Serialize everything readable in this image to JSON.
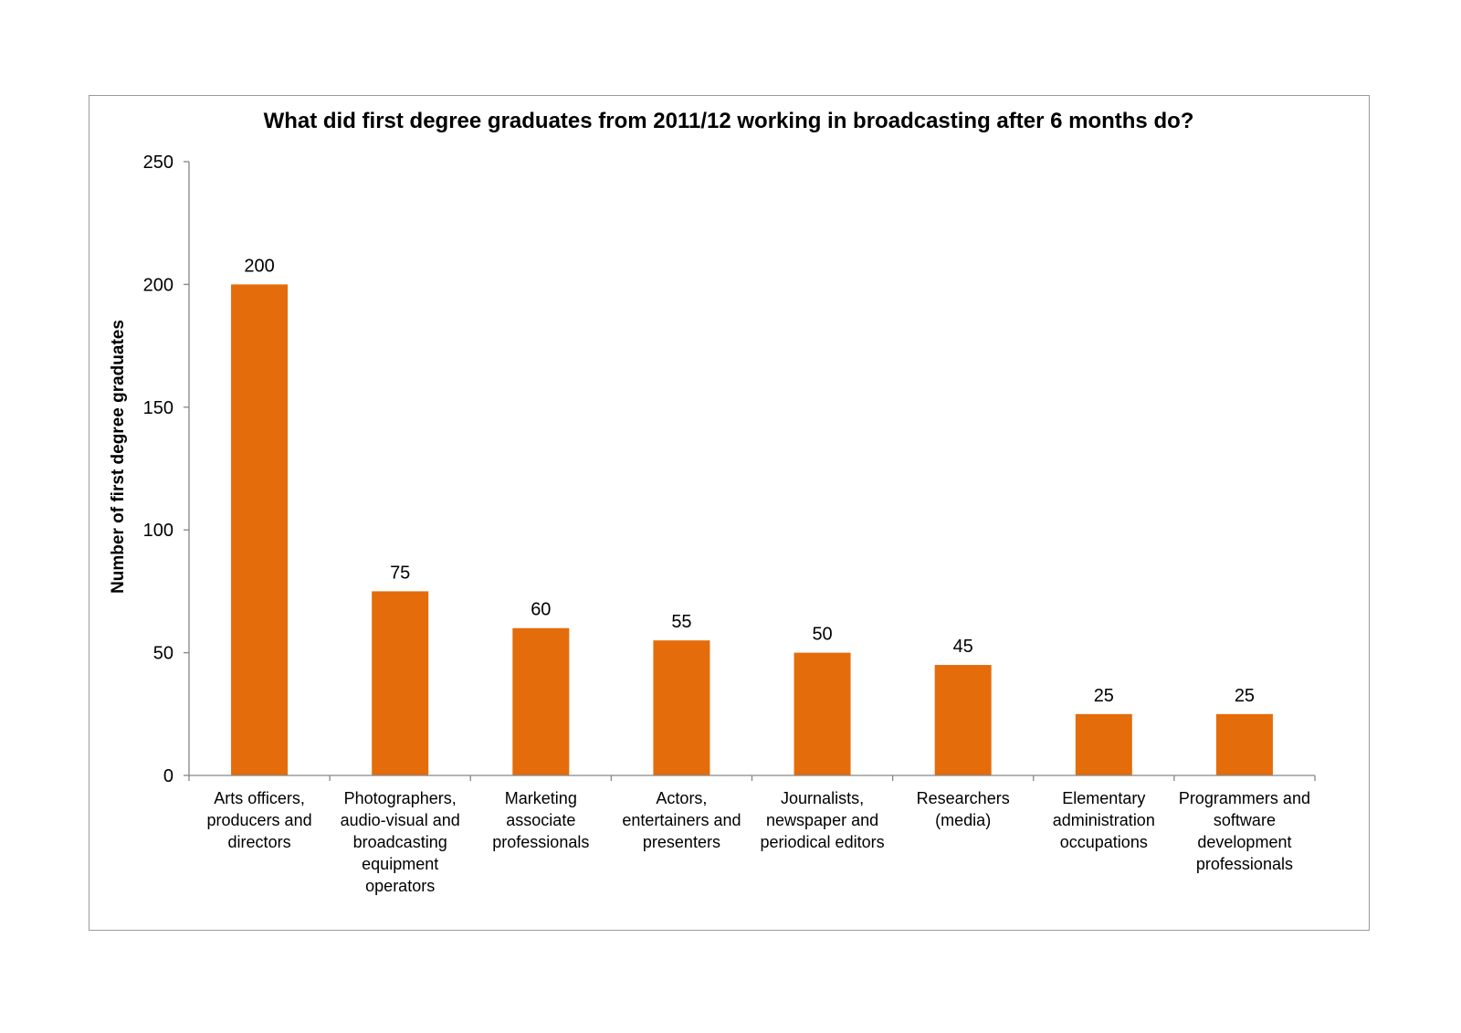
{
  "chart_data": {
    "type": "bar",
    "title": "What did first degree graduates from 2011/12 working in broadcasting after 6 months do?",
    "xlabel": "",
    "ylabel": "Number of first degree graduates",
    "ylim": [
      0,
      250
    ],
    "yticks": [
      0,
      50,
      100,
      150,
      200,
      250
    ],
    "grid": false,
    "legend": "none",
    "bar_color": "#E46C0A",
    "categories": [
      "Arts officers, producers and directors",
      "Photographers, audio-visual and broadcasting equipment operators",
      "Marketing associate professionals",
      "Actors, entertainers and presenters",
      "Journalists, newspaper and periodical editors",
      "Researchers (media)",
      "Elementary administration occupations",
      "Programmers and software development professionals"
    ],
    "category_label_lines": [
      [
        "Arts officers,",
        "producers and",
        "directors"
      ],
      [
        "Photographers,",
        "audio-visual and",
        "broadcasting",
        "equipment",
        "operators"
      ],
      [
        "Marketing",
        "associate",
        "professionals"
      ],
      [
        "Actors,",
        "entertainers and",
        "presenters"
      ],
      [
        "Journalists,",
        "newspaper and",
        "periodical editors"
      ],
      [
        "Researchers",
        "(media)"
      ],
      [
        "Elementary",
        "administration",
        "occupations"
      ],
      [
        "Programmers and",
        "software",
        "development",
        "professionals"
      ]
    ],
    "values": [
      200,
      75,
      60,
      55,
      50,
      45,
      25,
      25
    ],
    "data_labels": [
      "200",
      "75",
      "60",
      "55",
      "50",
      "45",
      "25",
      "25"
    ]
  }
}
